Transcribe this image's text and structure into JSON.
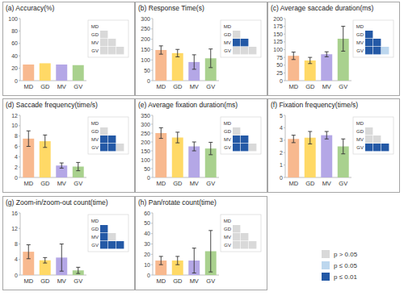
{
  "chart_data": [
    {
      "type": "bar",
      "title": "(a)  Accuracy(%)",
      "categories": [
        "MD",
        "GD",
        "MV",
        "GV"
      ],
      "values": [
        26,
        28,
        26,
        25
      ],
      "colors": [
        "#f8b98f",
        "#ffd966",
        "#b4a7e6",
        "#a9d18e"
      ],
      "ylim": [
        0,
        100
      ],
      "yticks": [
        0,
        20,
        40,
        60,
        80,
        100
      ],
      "significance": [
        [
          "p > 0.05"
        ],
        [
          "p > 0.05",
          "p > 0.05"
        ],
        [
          "p > 0.05",
          "p > 0.05",
          "p > 0.05"
        ]
      ]
    },
    {
      "type": "bar",
      "title": "(b)  Response Time(s)",
      "categories": [
        "MD",
        "GD",
        "MV",
        "GV"
      ],
      "values": [
        148,
        133,
        90,
        108
      ],
      "errors": [
        20,
        18,
        35,
        45
      ],
      "colors": [
        "#f8b98f",
        "#ffd966",
        "#b4a7e6",
        "#a9d18e"
      ],
      "ylim": [
        0,
        300
      ],
      "yticks": [
        0,
        50,
        100,
        150,
        200,
        250,
        300
      ],
      "significance": [
        [
          "p > 0.05"
        ],
        [
          "p ≤ 0.01",
          "p ≤ 0.01"
        ],
        [
          "p > 0.05",
          "p > 0.05",
          "p > 0.05"
        ]
      ]
    },
    {
      "type": "bar",
      "title": "(c)  Average saccade duration(ms)",
      "categories": [
        "MD",
        "GD",
        "MV",
        "GV"
      ],
      "values": [
        80,
        65,
        85,
        135
      ],
      "errors": [
        12,
        10,
        8,
        40
      ],
      "colors": [
        "#f8b98f",
        "#ffd966",
        "#b4a7e6",
        "#a9d18e"
      ],
      "ylim": [
        0,
        200
      ],
      "yticks": [
        0,
        25,
        50,
        75,
        100,
        125,
        150,
        175,
        200
      ],
      "significance": [
        [
          "p ≤ 0.01"
        ],
        [
          "p ≤ 0.01",
          "p ≤ 0.01"
        ],
        [
          "p ≤ 0.01",
          "p ≤ 0.01",
          "p ≤ 0.05"
        ]
      ]
    },
    {
      "type": "bar",
      "title": "(d)  Saccade frequency(time/s)",
      "categories": [
        "MD",
        "GD",
        "MV",
        "GV"
      ],
      "values": [
        7.5,
        7,
        2.3,
        2.1
      ],
      "errors": [
        1.5,
        1.2,
        0.5,
        0.8
      ],
      "colors": [
        "#f8b98f",
        "#ffd966",
        "#b4a7e6",
        "#a9d18e"
      ],
      "ylim": [
        0,
        12
      ],
      "yticks": [
        0,
        2,
        4,
        6,
        8,
        10,
        12
      ],
      "significance": [
        [
          "p > 0.05"
        ],
        [
          "p ≤ 0.01",
          "p ≤ 0.01"
        ],
        [
          "p ≤ 0.01",
          "p ≤ 0.01",
          "p > 0.05"
        ]
      ]
    },
    {
      "type": "bar",
      "title": "(e)  Average fixation duration(ms)",
      "categories": [
        "MD",
        "GD",
        "MV",
        "GV"
      ],
      "values": [
        250,
        225,
        175,
        163
      ],
      "errors": [
        30,
        30,
        25,
        35
      ],
      "colors": [
        "#f8b98f",
        "#ffd966",
        "#b4a7e6",
        "#a9d18e"
      ],
      "ylim": [
        0,
        350
      ],
      "yticks": [
        0,
        50,
        100,
        150,
        200,
        250,
        300,
        350
      ],
      "significance": [
        [
          "p > 0.05"
        ],
        [
          "p ≤ 0.01",
          "p ≤ 0.01"
        ],
        [
          "p ≤ 0.01",
          "p ≤ 0.01",
          "p > 0.05"
        ]
      ]
    },
    {
      "type": "bar",
      "title": "(f)  Fixation frequency(time/s)",
      "categories": [
        "MD",
        "GD",
        "MV",
        "GV"
      ],
      "values": [
        3.1,
        3.2,
        3.4,
        2.5
      ],
      "errors": [
        0.3,
        0.5,
        0.3,
        0.6
      ],
      "colors": [
        "#f8b98f",
        "#ffd966",
        "#b4a7e6",
        "#a9d18e"
      ],
      "ylim": [
        0,
        5
      ],
      "yticks": [
        0,
        1,
        2,
        3,
        4,
        5
      ],
      "significance": [
        [
          "p > 0.05"
        ],
        [
          "p > 0.05",
          "p > 0.05"
        ],
        [
          "p ≤ 0.01",
          "p ≤ 0.01",
          "p ≤ 0.01"
        ]
      ]
    },
    {
      "type": "bar",
      "title": "(g)  Zoom-in/zoom-out count(time)",
      "categories": [
        "MD",
        "GD",
        "MV",
        "GV"
      ],
      "values": [
        6,
        3.8,
        4.5,
        1.2
      ],
      "errors": [
        1.8,
        0.7,
        3.5,
        0.8
      ],
      "colors": [
        "#f8b98f",
        "#ffd966",
        "#b4a7e6",
        "#a9d18e"
      ],
      "ylim": [
        0,
        16
      ],
      "yticks": [
        0,
        4,
        8,
        12,
        16
      ],
      "significance": [
        [
          "p ≤ 0.01"
        ],
        [
          "p ≤ 0.01",
          "p > 0.05"
        ],
        [
          "p ≤ 0.01",
          "p ≤ 0.01",
          "p ≤ 0.01"
        ]
      ]
    },
    {
      "type": "bar",
      "title": "(h)  Pan/rotate count(time)",
      "categories": [
        "MD",
        "GD",
        "MV",
        "GV"
      ],
      "values": [
        14,
        14,
        14,
        23
      ],
      "errors": [
        4,
        4,
        12,
        20
      ],
      "colors": [
        "#f8b98f",
        "#ffd966",
        "#b4a7e6",
        "#a9d18e"
      ],
      "ylim": [
        0,
        60
      ],
      "yticks": [
        0,
        10,
        20,
        30,
        40,
        50,
        60
      ],
      "significance": [
        [
          "p > 0.05"
        ],
        [
          "p > 0.05",
          "p > 0.05"
        ],
        [
          "p > 0.05",
          "p > 0.05",
          "p > 0.05"
        ]
      ]
    }
  ],
  "significance_legend": [
    {
      "label": "p > 0.05",
      "color": "#d9d9d9"
    },
    {
      "label": "p ≤ 0.05",
      "color": "#bdd7ee"
    },
    {
      "label": "p ≤ 0.01",
      "color": "#2459a6"
    }
  ]
}
